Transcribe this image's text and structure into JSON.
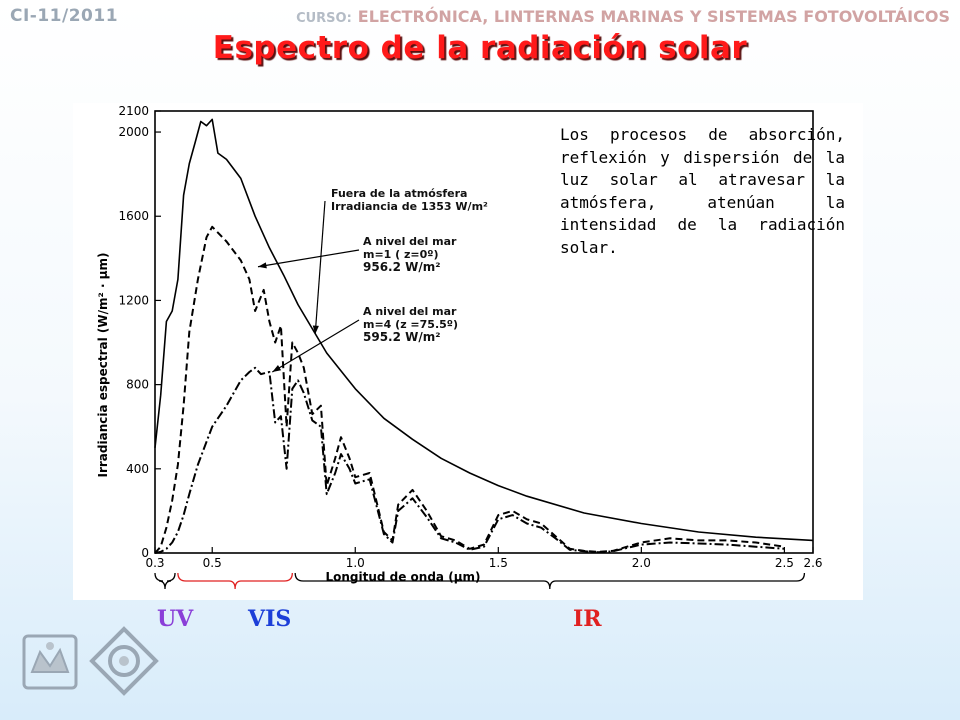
{
  "header": {
    "course_code": "CI-11/2011",
    "course_label": "CURSO:",
    "course_name": "ELECTRÓNICA, LINTERNAS MARINAS Y SISTEMAS FOTOVOLTÁICOS"
  },
  "title": "Espectro de la radiación solar",
  "description": "Los procesos de absorción, reflexión y dispersión de la luz solar al atravesar la atmósfera, atenúan la intensidad de la radiación solar.",
  "bands": [
    {
      "label": "UV",
      "color": "#8a3fd8"
    },
    {
      "label": "VIS",
      "color": "#1c3fd8"
    },
    {
      "label": "IR",
      "color": "#e02020"
    }
  ],
  "chart_data": {
    "type": "line",
    "xlabel": "Longitud de onda (μm)",
    "ylabel": "Irradiancia espectral (W/m² · μm)",
    "xlim": [
      0.3,
      2.6
    ],
    "ylim": [
      0,
      2100
    ],
    "x_ticks": [
      0.3,
      0.5,
      1.0,
      1.5,
      2.0,
      2.5,
      2.6
    ],
    "x_tick_labels": [
      "0.3",
      "0.5",
      "1.0",
      "1.5",
      "2.0",
      "2.5",
      "2.6"
    ],
    "y_ticks": [
      0,
      400,
      800,
      1200,
      1600,
      2000,
      2100
    ],
    "series": [
      {
        "name": "Fuera de la atmósfera Irradiancia de 1353 W/m²",
        "style": "solid",
        "x": [
          0.3,
          0.32,
          0.34,
          0.36,
          0.38,
          0.4,
          0.42,
          0.44,
          0.46,
          0.48,
          0.5,
          0.52,
          0.55,
          0.6,
          0.65,
          0.7,
          0.75,
          0.8,
          0.9,
          1.0,
          1.1,
          1.2,
          1.3,
          1.4,
          1.5,
          1.6,
          1.8,
          2.0,
          2.2,
          2.4,
          2.6
        ],
        "y": [
          500,
          750,
          1100,
          1150,
          1300,
          1700,
          1850,
          1950,
          2050,
          2030,
          2060,
          1900,
          1870,
          1780,
          1600,
          1450,
          1320,
          1180,
          950,
          780,
          640,
          540,
          450,
          380,
          320,
          270,
          190,
          140,
          100,
          75,
          60
        ]
      },
      {
        "name": "A nivel del mar m=1 ( z=0º) 956.2 W/m²",
        "style": "dashed",
        "x": [
          0.3,
          0.32,
          0.34,
          0.36,
          0.38,
          0.4,
          0.42,
          0.45,
          0.48,
          0.5,
          0.55,
          0.6,
          0.63,
          0.65,
          0.68,
          0.7,
          0.72,
          0.74,
          0.76,
          0.78,
          0.8,
          0.82,
          0.85,
          0.88,
          0.9,
          0.93,
          0.95,
          0.98,
          1.0,
          1.05,
          1.1,
          1.13,
          1.15,
          1.2,
          1.25,
          1.3,
          1.35,
          1.4,
          1.45,
          1.5,
          1.55,
          1.6,
          1.65,
          1.7,
          1.75,
          1.8,
          1.85,
          1.9,
          1.95,
          2.0,
          2.1,
          2.2,
          2.3,
          2.4,
          2.5
        ],
        "y": [
          0,
          30,
          120,
          250,
          420,
          700,
          1050,
          1300,
          1500,
          1550,
          1480,
          1390,
          1300,
          1150,
          1250,
          1100,
          1000,
          1080,
          600,
          1000,
          950,
          880,
          660,
          700,
          320,
          450,
          550,
          450,
          360,
          380,
          100,
          60,
          230,
          300,
          200,
          80,
          60,
          20,
          40,
          180,
          200,
          160,
          140,
          80,
          20,
          10,
          5,
          10,
          30,
          50,
          70,
          60,
          60,
          50,
          30
        ]
      },
      {
        "name": "A nivel del mar m=4 (z =75.5º) 595.2 W/m²",
        "style": "dashdot",
        "x": [
          0.3,
          0.32,
          0.34,
          0.36,
          0.38,
          0.4,
          0.42,
          0.45,
          0.5,
          0.55,
          0.6,
          0.63,
          0.65,
          0.67,
          0.7,
          0.72,
          0.74,
          0.76,
          0.78,
          0.8,
          0.82,
          0.85,
          0.88,
          0.9,
          0.93,
          0.95,
          0.98,
          1.0,
          1.05,
          1.1,
          1.13,
          1.15,
          1.2,
          1.25,
          1.3,
          1.35,
          1.4,
          1.45,
          1.5,
          1.55,
          1.6,
          1.65,
          1.7,
          1.75,
          1.8,
          1.85,
          1.9,
          2.0,
          2.1,
          2.2,
          2.3,
          2.4,
          2.5
        ],
        "y": [
          0,
          5,
          20,
          50,
          100,
          180,
          280,
          420,
          600,
          700,
          820,
          860,
          880,
          850,
          860,
          620,
          650,
          400,
          780,
          820,
          760,
          630,
          600,
          280,
          380,
          470,
          400,
          330,
          350,
          90,
          50,
          200,
          260,
          170,
          70,
          50,
          15,
          30,
          160,
          180,
          140,
          120,
          70,
          15,
          8,
          4,
          8,
          40,
          50,
          45,
          40,
          30,
          20
        ]
      }
    ],
    "annotations": [
      {
        "text": "Fuera de la atmósfera",
        "points_to": "Fuera de la atmósfera Irradiancia de 1353 W/m²"
      },
      {
        "text": "Irradiancia de 1353 W/m²",
        "points_to": "Fuera de la atmósfera Irradiancia de 1353 W/m²"
      },
      {
        "text": "A nivel del mar",
        "points_to": "A nivel del mar m=1 ( z=0º) 956.2 W/m²"
      },
      {
        "text": "m=1 ( z=0º)",
        "points_to": "A nivel del mar m=1 ( z=0º) 956.2 W/m²"
      },
      {
        "text": "956.2 W/m²",
        "points_to": "A nivel del mar m=1 ( z=0º) 956.2 W/m²"
      },
      {
        "text": "A nivel del mar",
        "points_to": "A nivel del mar m=4 (z =75.5º) 595.2 W/m²"
      },
      {
        "text": "m=4 (z =75.5º)",
        "points_to": "A nivel del mar m=4 (z =75.5º) 595.2 W/m²"
      },
      {
        "text": "595.2 W/m²",
        "points_to": "A nivel del mar m=4 (z =75.5º) 595.2 W/m²"
      }
    ],
    "grid": false,
    "legend": "none"
  }
}
